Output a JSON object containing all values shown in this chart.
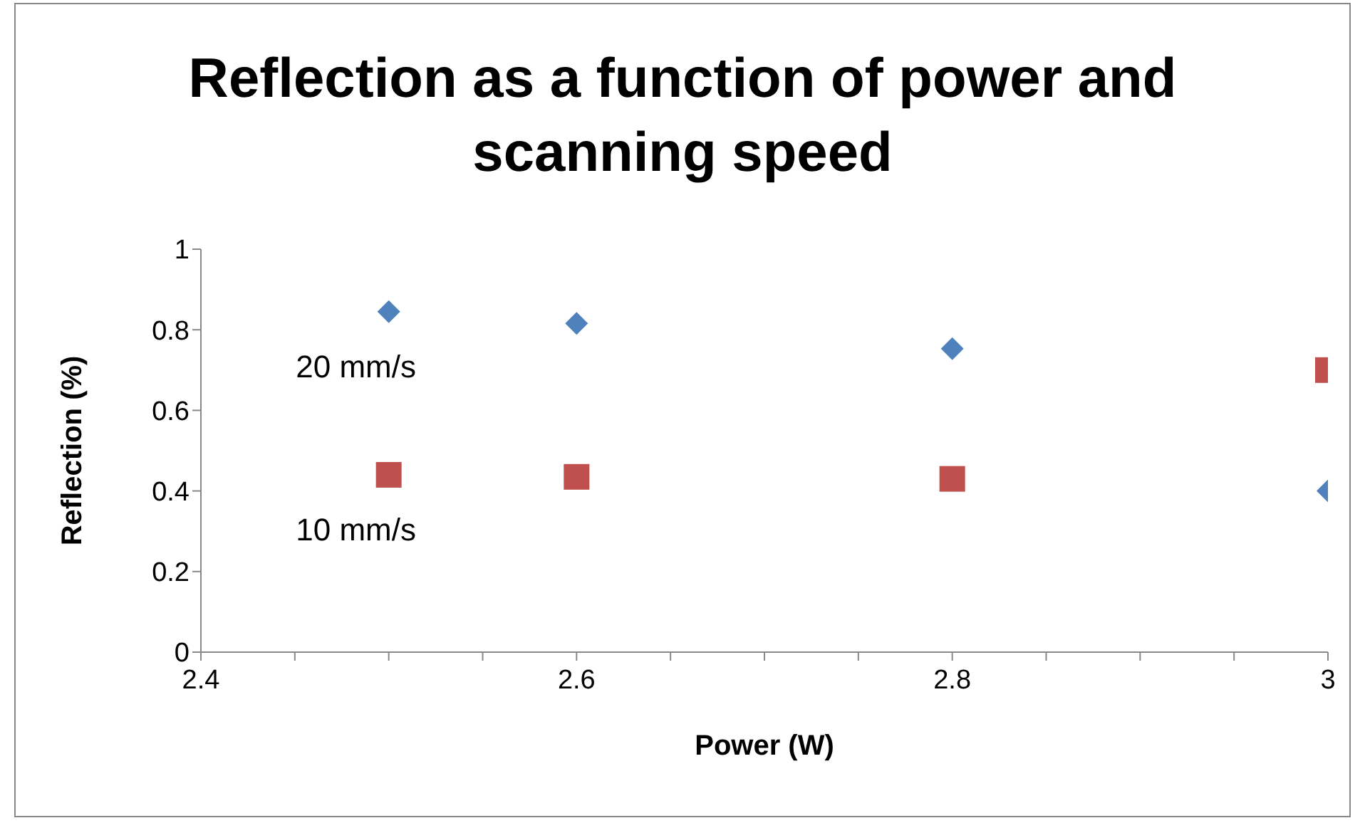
{
  "chart_data": {
    "type": "scatter",
    "title": "Reflection as a function of power and scanning speed",
    "xlabel": "Power (W)",
    "ylabel": "Reflection (%)",
    "xlim": [
      2.4,
      3
    ],
    "xticks": [
      2.4,
      {
        "value": 2.45,
        "label": null
      },
      {
        "value": 2.5,
        "label": null
      },
      {
        "value": 2.55,
        "label": null
      },
      2.6,
      {
        "value": 2.65,
        "label": null
      },
      {
        "value": 2.7,
        "label": null
      },
      {
        "value": 2.75,
        "label": null
      },
      2.8,
      {
        "value": 2.85,
        "label": null
      },
      {
        "value": 2.9,
        "label": null
      },
      {
        "value": 2.95,
        "label": null
      },
      3
    ],
    "ylim": [
      0,
      1
    ],
    "yticks": [
      0,
      0.2,
      0.4,
      0.6,
      0.8,
      1
    ],
    "x": [
      2.5,
      2.6,
      2.8,
      3
    ],
    "series": [
      {
        "name": "20 mm/s",
        "color": "#4f81bd",
        "marker": "diamond",
        "values": [
          0.845,
          0.816,
          0.753,
          0.4
        ]
      },
      {
        "name": "10 mm/s",
        "color": "#c0504d",
        "marker": "square",
        "values": [
          0.44,
          0.435,
          0.43,
          0.7
        ]
      }
    ]
  }
}
